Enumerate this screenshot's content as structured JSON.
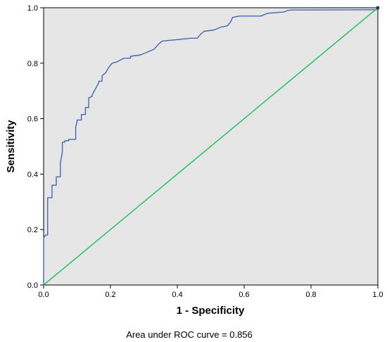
{
  "chart_data": {
    "type": "line",
    "title": "",
    "xlabel": "1 - Specificity",
    "ylabel": "Sensitivity",
    "xlim": [
      0,
      1
    ],
    "ylim": [
      0,
      1
    ],
    "x_ticks": [
      "0.0",
      "0.2",
      "0.4",
      "0.6",
      "0.8",
      "1.0"
    ],
    "y_ticks": [
      "0.0",
      "0.2",
      "0.4",
      "0.6",
      "0.8",
      "1.0"
    ],
    "grid": false,
    "legend": "none",
    "background_color": "#e6e6e6",
    "caption": "Area under ROC curve = 0.856",
    "series": [
      {
        "color": "#4467b4",
        "style": "step",
        "x": [
          0,
          0,
          0.006,
          0.012,
          0.012,
          0.025,
          0.025,
          0.038,
          0.038,
          0.05,
          0.05,
          0.056,
          0.056,
          0.063,
          0.063,
          0.075,
          0.075,
          0.096,
          0.096,
          0.1,
          0.1,
          0.113,
          0.113,
          0.125,
          0.125,
          0.135,
          0.135,
          0.145,
          0.145,
          0.165,
          0.165,
          0.175,
          0.175,
          0.185,
          0.195,
          0.205,
          0.22,
          0.24,
          0.26,
          0.26,
          0.29,
          0.33,
          0.345,
          0.355,
          0.4,
          0.44,
          0.46,
          0.47,
          0.48,
          0.51,
          0.53,
          0.55,
          0.56,
          0.565,
          0.585,
          0.65,
          0.67,
          0.72,
          0.73,
          0.74,
          1.0
        ],
        "y": [
          0,
          0.17,
          0.18,
          0.18,
          0.315,
          0.315,
          0.36,
          0.36,
          0.39,
          0.39,
          0.44,
          0.48,
          0.515,
          0.515,
          0.52,
          0.52,
          0.525,
          0.525,
          0.57,
          0.59,
          0.595,
          0.595,
          0.615,
          0.615,
          0.64,
          0.64,
          0.675,
          0.68,
          0.685,
          0.73,
          0.735,
          0.735,
          0.755,
          0.765,
          0.785,
          0.8,
          0.805,
          0.818,
          0.818,
          0.825,
          0.83,
          0.85,
          0.87,
          0.88,
          0.885,
          0.89,
          0.89,
          0.905,
          0.915,
          0.92,
          0.93,
          0.935,
          0.95,
          0.965,
          0.97,
          0.97,
          0.98,
          0.985,
          0.99,
          0.992,
          0.993
        ]
      },
      {
        "color": "#22c460",
        "style": "diagonal",
        "x": [
          0,
          1
        ],
        "y": [
          0,
          1
        ]
      }
    ]
  }
}
